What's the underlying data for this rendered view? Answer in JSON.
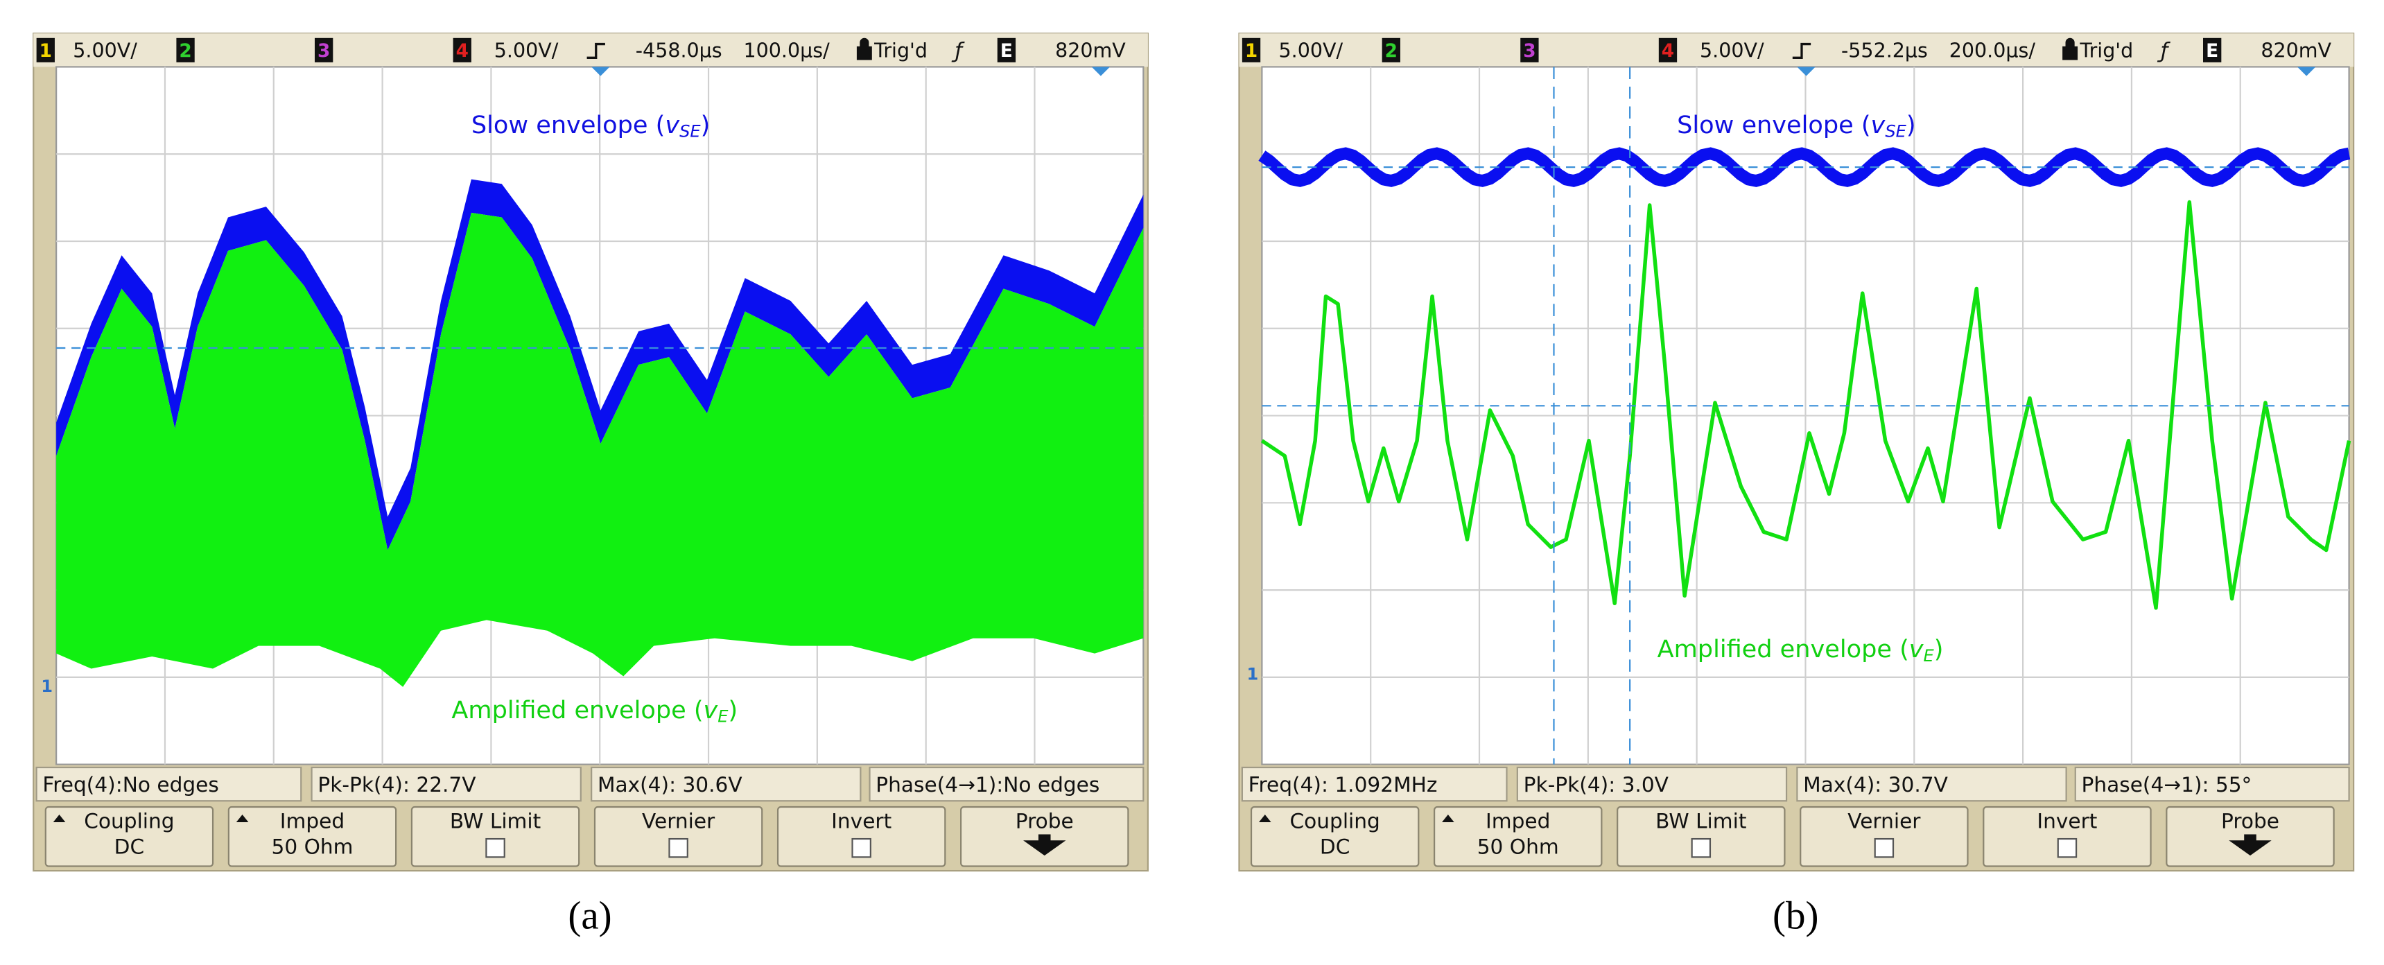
{
  "panels": [
    {
      "caption": "(a)",
      "top_bar": {
        "ch1": "1",
        "ch1_scale": "5.00V/",
        "ch2": "2",
        "ch3": "3",
        "ch4": "4",
        "ch4_scale": "5.00V/",
        "delay": "-458.0µs",
        "timebase": "100.0µs/",
        "trigger": "Trig'd",
        "mode": "E",
        "trigger_level": "820mV"
      },
      "ground_marker": "1",
      "annotations": {
        "slow": {
          "prefix": "Slow envelope (",
          "var": "v",
          "sub": "SE",
          "suffix": ")"
        },
        "amplified": {
          "prefix": "Amplified envelope (",
          "var": "v",
          "sub": "E",
          "suffix": ")"
        }
      },
      "measurements": [
        "Freq(4):No edges",
        "Pk-Pk(4): 22.7V",
        "Max(4): 30.6V",
        "Phase(4→1):No edges"
      ],
      "softkeys": [
        {
          "label": "Coupling",
          "value": "DC"
        },
        {
          "label": "Imped",
          "value": "50 Ohm"
        },
        {
          "label": "BW Limit"
        },
        {
          "label": "Vernier"
        },
        {
          "label": "Invert"
        },
        {
          "label": "Probe"
        }
      ]
    },
    {
      "caption": "(b)",
      "top_bar": {
        "ch1": "1",
        "ch1_scale": "5.00V/",
        "ch2": "2",
        "ch3": "3",
        "ch4": "4",
        "ch4_scale": "5.00V/",
        "delay": "-552.2µs",
        "timebase": "200.0µs/",
        "trigger": "Trig'd",
        "mode": "E",
        "trigger_level": "820mV"
      },
      "ground_marker": "1",
      "annotations": {
        "slow": {
          "prefix": "Slow envelope (",
          "var": "v",
          "sub": "SE",
          "suffix": ")"
        },
        "amplified": {
          "prefix": "Amplified envelope (",
          "var": "v",
          "sub": "E",
          "suffix": ")"
        }
      },
      "measurements": [
        "Freq(4): 1.092MHz",
        "Pk-Pk(4): 3.0V",
        "Max(4): 30.7V",
        "Phase(4→1): 55°"
      ],
      "softkeys": [
        {
          "label": "Coupling",
          "value": "DC"
        },
        {
          "label": "Imped",
          "value": "50 Ohm"
        },
        {
          "label": "BW Limit"
        },
        {
          "label": "Vernier"
        },
        {
          "label": "Invert"
        },
        {
          "label": "Probe"
        }
      ]
    }
  ]
}
